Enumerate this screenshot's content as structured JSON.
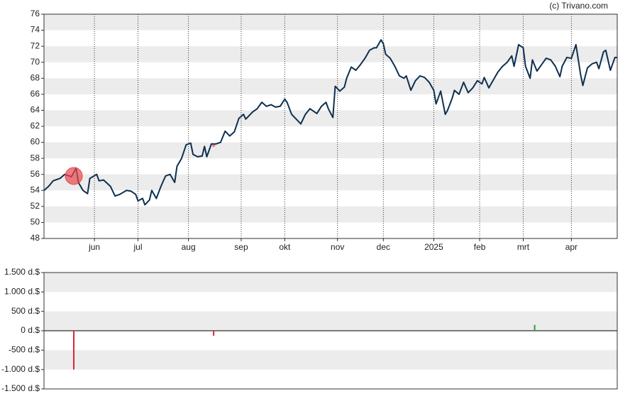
{
  "watermark": "(c) Trivano.com",
  "chart_data": [
    {
      "type": "line",
      "x": [
        0,
        2,
        4,
        7,
        9,
        12,
        14,
        15,
        17,
        19,
        20,
        23,
        24,
        26,
        29,
        31,
        33,
        36,
        38,
        40,
        41,
        43,
        44,
        46,
        47,
        49,
        51,
        53,
        55,
        57,
        58,
        60,
        62,
        64,
        65,
        67,
        69,
        70,
        71,
        73,
        75,
        77,
        79,
        81,
        83,
        85,
        87,
        88,
        91,
        93,
        95,
        97,
        99,
        101,
        103,
        105,
        106,
        108,
        110,
        112,
        114,
        116,
        119,
        121,
        123,
        124,
        126,
        127,
        129,
        131,
        132,
        134,
        136,
        138,
        140,
        142,
        144,
        145,
        147,
        148,
        149,
        151,
        153,
        155,
        157,
        158,
        160,
        162,
        164,
        166,
        168,
        170,
        171,
        173,
        175,
        176,
        178,
        179,
        181,
        183,
        185,
        187,
        189,
        191,
        192,
        194,
        196,
        198,
        200,
        202,
        204,
        205,
        207,
        209,
        210,
        212,
        213,
        215,
        217,
        219,
        221,
        223,
        225,
        226,
        228,
        230,
        232,
        234,
        235,
        237,
        239,
        241,
        242,
        244,
        245,
        247,
        249,
        250
      ],
      "series": [
        {
          "color": "#0d3050",
          "values": [
            54,
            54.5,
            55.2,
            55.5,
            56,
            55.7,
            56.8,
            55,
            54,
            53.6,
            55.5,
            56,
            55.2,
            55.3,
            54.5,
            53.3,
            53.5,
            54,
            53.9,
            53.5,
            52.7,
            53,
            52.2,
            52.8,
            54,
            53,
            54.5,
            55.8,
            56,
            55,
            57,
            58,
            59.7,
            59.9,
            58.5,
            58.2,
            58.3,
            59.5,
            58.2,
            59.8,
            59.8,
            60,
            61.4,
            60.8,
            61.3,
            63,
            63.5,
            62.9,
            63.8,
            64.2,
            65,
            64.5,
            64.7,
            64.4,
            64.5,
            65.4,
            65,
            63.5,
            62.9,
            62.3,
            63.5,
            64.2,
            63.6,
            64.5,
            65,
            64.2,
            63.1,
            67,
            66.4,
            66.9,
            68,
            69.4,
            69,
            69.7,
            70.5,
            71.5,
            71.8,
            71.8,
            72.8,
            72.3,
            71,
            70.5,
            69.5,
            68.3,
            68,
            68.3,
            66.5,
            67.7,
            68.3,
            68.1,
            67.5,
            66.5,
            64.8,
            66.4,
            63.5,
            64,
            65.5,
            66.5,
            66,
            67.5,
            66.2,
            66.8,
            67.7,
            67.3,
            68.1,
            66.8,
            67.8,
            68.8,
            69.5,
            70,
            70.8,
            69.5,
            72.2,
            71.8,
            69.5,
            68,
            70.3,
            68.9,
            69.7,
            70.5,
            70.3,
            69.5,
            68.2,
            69.5,
            70.6,
            70.5,
            72.2,
            68.5,
            67.1,
            69.3,
            69.8,
            70,
            69.2,
            71.3,
            71.5,
            69,
            70.6,
            70.6
          ]
        }
      ],
      "markers": [
        {
          "x": 13,
          "y": 55.8,
          "color": "#e8474f"
        },
        {
          "x": 74,
          "y": 59.6,
          "color": "#e8474f"
        }
      ],
      "xlim": [
        0,
        250
      ],
      "xticks": [
        {
          "value": 22,
          "label": "jun"
        },
        {
          "value": 41,
          "label": "jul"
        },
        {
          "value": 63,
          "label": "aug"
        },
        {
          "value": 86,
          "label": "sep"
        },
        {
          "value": 105,
          "label": "okt"
        },
        {
          "value": 128,
          "label": "nov"
        },
        {
          "value": 148,
          "label": "dec"
        },
        {
          "value": 170,
          "label": "2025"
        },
        {
          "value": 190,
          "label": "feb"
        },
        {
          "value": 209,
          "label": "mrt"
        },
        {
          "value": 230,
          "label": "apr"
        }
      ],
      "ylim": [
        48,
        76
      ],
      "yticks": [
        48,
        50,
        52,
        54,
        56,
        58,
        60,
        62,
        64,
        66,
        68,
        70,
        72,
        74,
        76
      ]
    },
    {
      "type": "bar",
      "x": [
        13,
        74,
        214
      ],
      "values": [
        -1000,
        -130,
        150
      ],
      "colors": [
        "#d9263a",
        "#d9263a",
        "#2e9e3e"
      ],
      "xlim": [
        0,
        250
      ],
      "ylim": [
        -1500,
        1500
      ],
      "yticks": [
        {
          "value": -1500,
          "label": "-1.500 d.$"
        },
        {
          "value": -1000,
          "label": "-1.000 d.$"
        },
        {
          "value": -500,
          "label": "-500 d.$"
        },
        {
          "value": 0,
          "label": "0 d.$"
        },
        {
          "value": 500,
          "label": "500 d.$"
        },
        {
          "value": 1000,
          "label": "1.000 d.$"
        },
        {
          "value": 1500,
          "label": "1.500 d.$"
        }
      ]
    }
  ]
}
